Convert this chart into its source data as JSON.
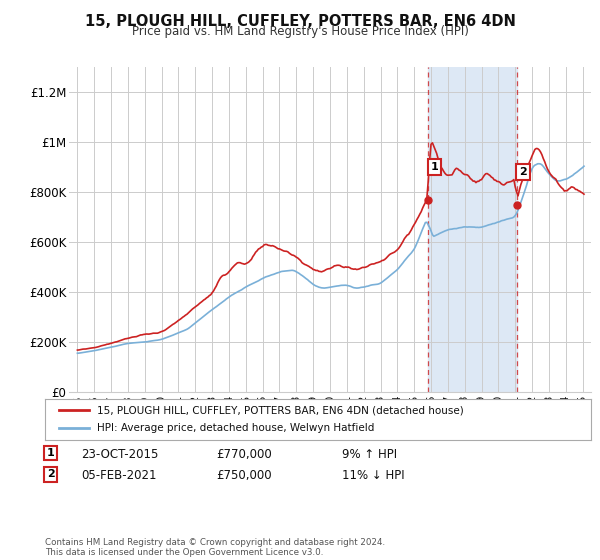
{
  "title": "15, PLOUGH HILL, CUFFLEY, POTTERS BAR, EN6 4DN",
  "subtitle": "Price paid vs. HM Land Registry's House Price Index (HPI)",
  "ylim": [
    0,
    1300000
  ],
  "yticks": [
    0,
    200000,
    400000,
    600000,
    800000,
    1000000,
    1200000
  ],
  "ytick_labels": [
    "£0",
    "£200K",
    "£400K",
    "£600K",
    "£800K",
    "£1M",
    "£1.2M"
  ],
  "hpi_color": "#7ab0d8",
  "price_color": "#cc2222",
  "bg_color": "#ffffff",
  "grid_color": "#cccccc",
  "shade_color": "#dde8f5",
  "sale1_x": 2015.82,
  "sale1_y": 770000,
  "sale1_label": "1",
  "sale1_date": "23-OCT-2015",
  "sale1_price": "£770,000",
  "sale1_hpi": "9% ↑ HPI",
  "sale2_x": 2021.09,
  "sale2_y": 750000,
  "sale2_label": "2",
  "sale2_date": "05-FEB-2021",
  "sale2_price": "£750,000",
  "sale2_hpi": "11% ↓ HPI",
  "legend_line1": "15, PLOUGH HILL, CUFFLEY, POTTERS BAR, EN6 4DN (detached house)",
  "legend_line2": "HPI: Average price, detached house, Welwyn Hatfield",
  "footer": "Contains HM Land Registry data © Crown copyright and database right 2024.\nThis data is licensed under the Open Government Licence v3.0.",
  "xticks": [
    1995,
    1996,
    1997,
    1998,
    1999,
    2000,
    2001,
    2002,
    2003,
    2004,
    2005,
    2006,
    2007,
    2008,
    2009,
    2010,
    2011,
    2012,
    2013,
    2014,
    2015,
    2016,
    2017,
    2018,
    2019,
    2020,
    2021,
    2022,
    2023,
    2024,
    2025
  ],
  "xlim": [
    1994.5,
    2025.5
  ]
}
